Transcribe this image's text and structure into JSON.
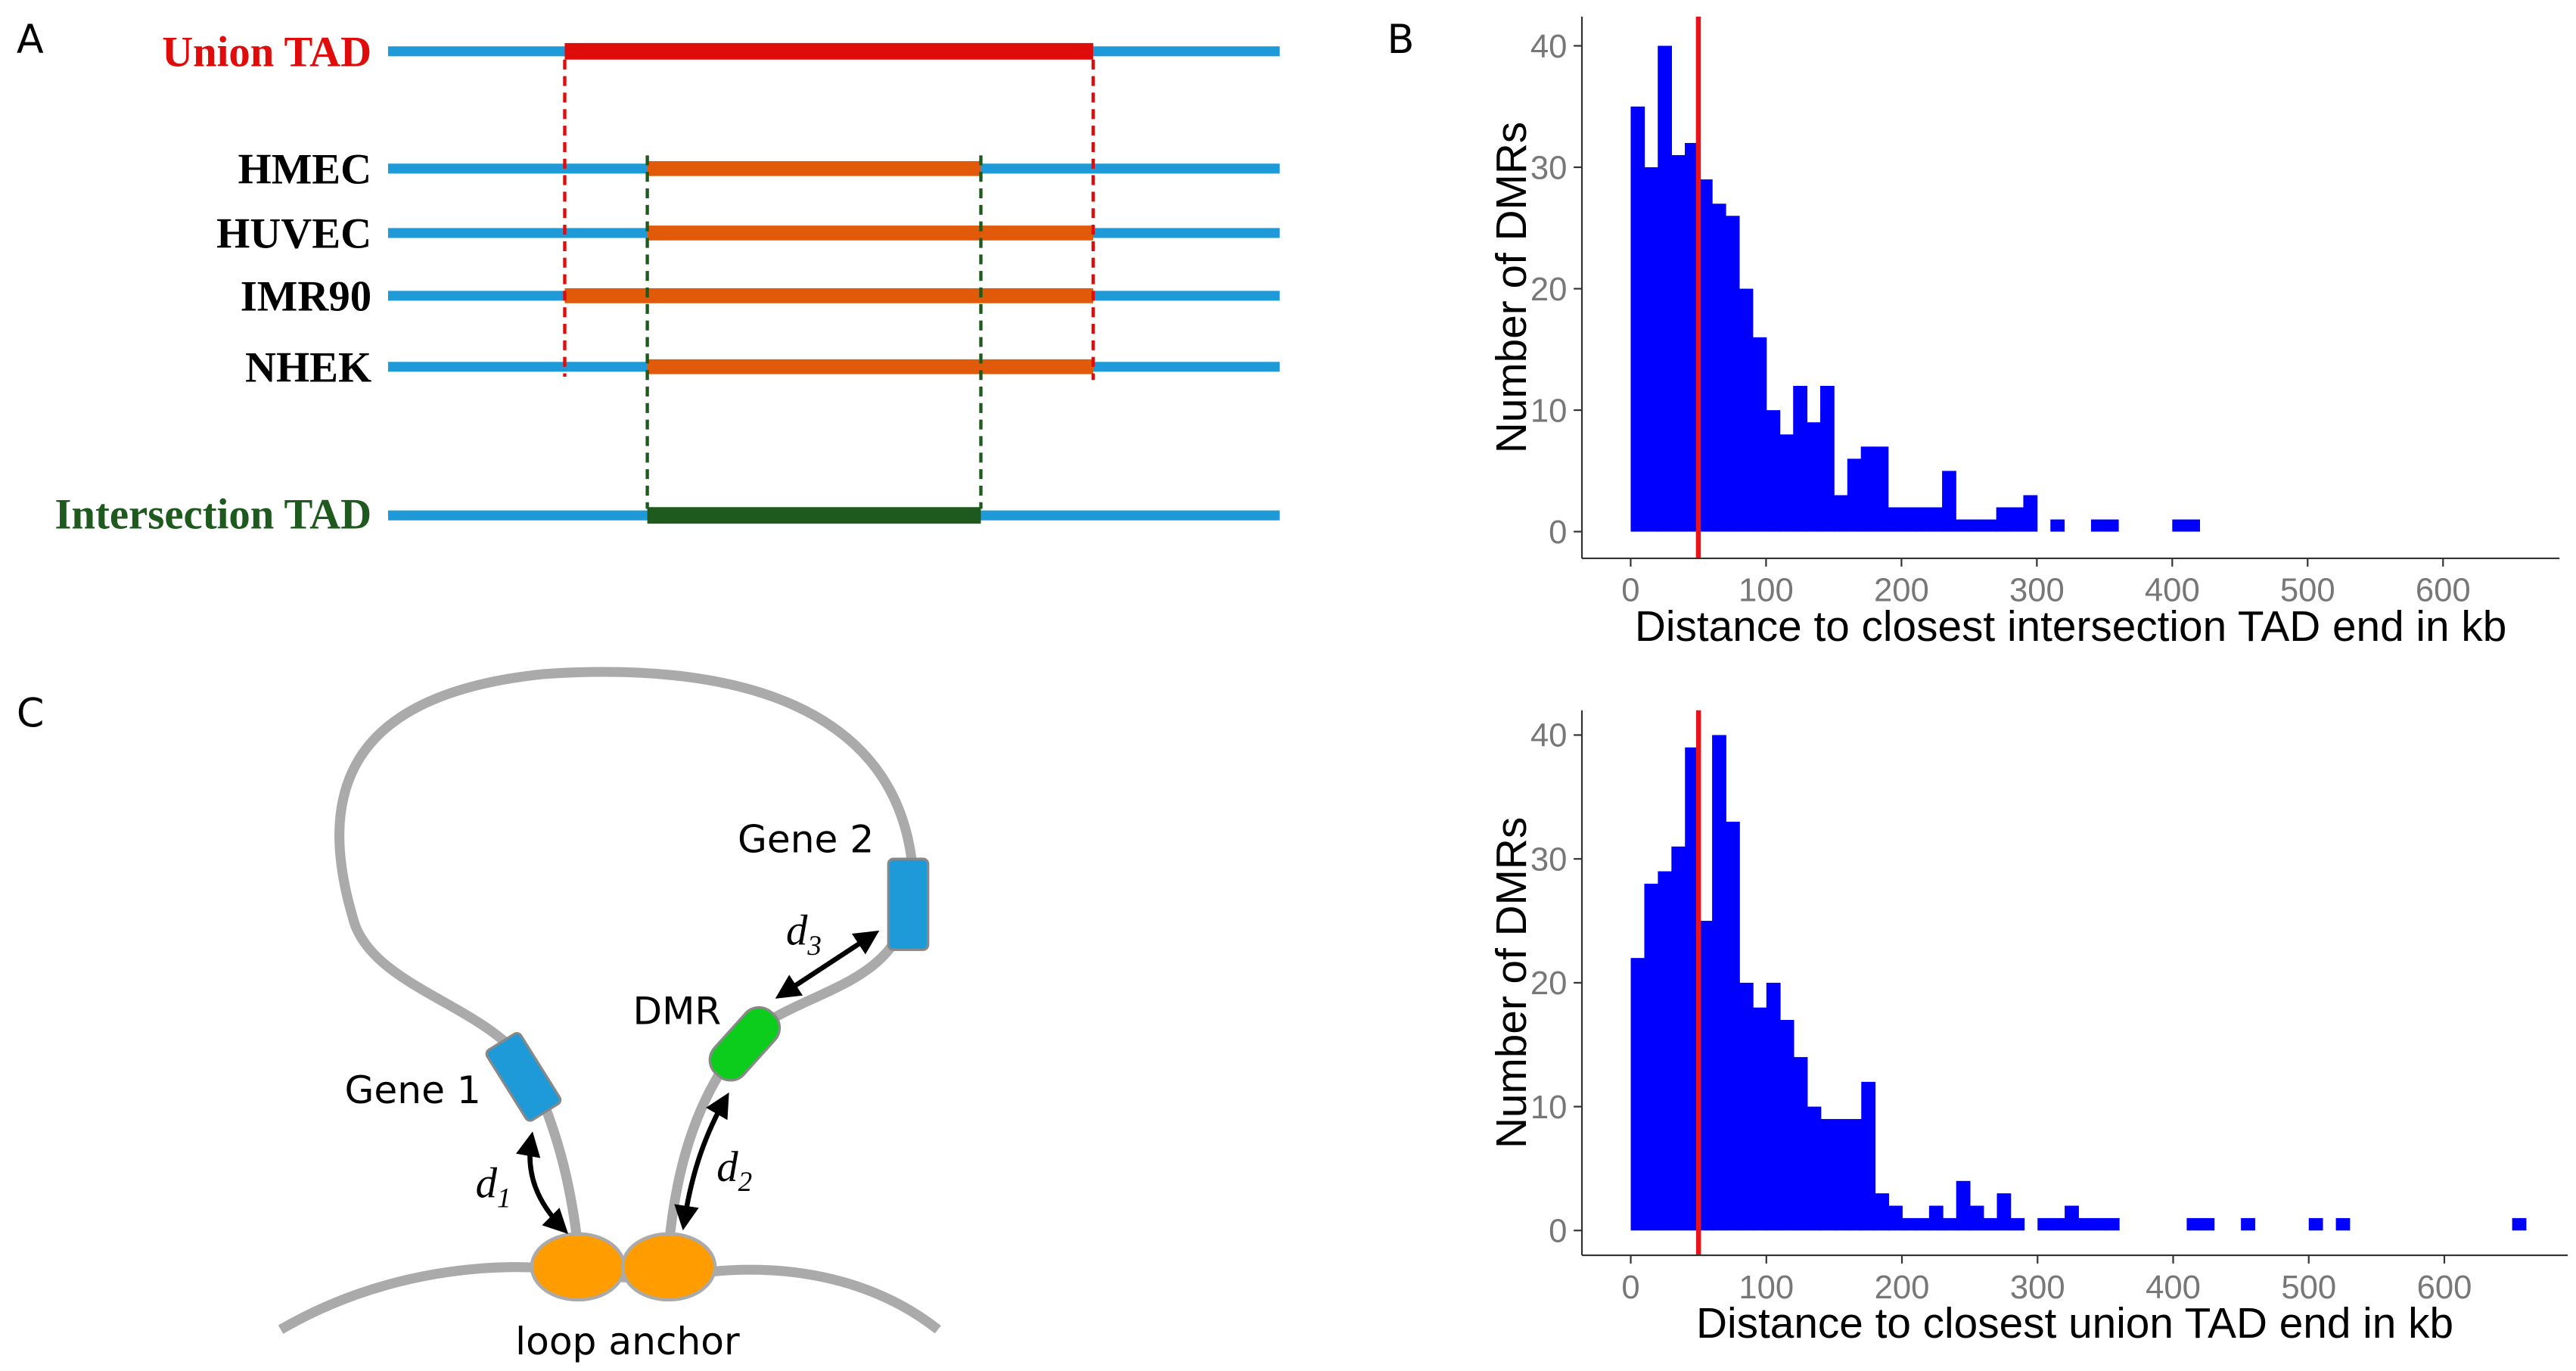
{
  "panel_labels": [
    "A",
    "B",
    "C"
  ],
  "diagram_a": {
    "union": "Union TAD",
    "cells": [
      "HMEC",
      "HUVEC",
      "IMR90",
      "NHEK"
    ],
    "intersection": "Intersection TAD"
  },
  "diagram_c": {
    "gene2": "Gene 2",
    "dmr": "DMR",
    "gene1": "Gene 1",
    "d1": {
      "var": "d",
      "sub": "1"
    },
    "d2": {
      "var": "d",
      "sub": "2"
    },
    "d3": {
      "var": "d",
      "sub": "3"
    },
    "anchor": "loop anchor"
  },
  "chart_data": [
    {
      "type": "histogram",
      "x_label": "Distance to closest intersection TAD end in kb",
      "y_label": "Number of DMRs",
      "bins": [
        0,
        10,
        20,
        30,
        40,
        50,
        60,
        70,
        80,
        90,
        100,
        110,
        120,
        130,
        140,
        150,
        160,
        170,
        180,
        190,
        200,
        210,
        220,
        230,
        240,
        250,
        260,
        270,
        280,
        290,
        300,
        310,
        320,
        330,
        340,
        350,
        360,
        370,
        380,
        390,
        400,
        410,
        420
      ],
      "values": [
        35,
        30,
        40,
        31,
        32,
        29,
        27,
        26,
        20,
        16,
        10,
        8,
        12,
        9,
        12,
        3,
        6,
        7,
        7,
        2,
        2,
        2,
        2,
        5,
        1,
        1,
        1,
        2,
        2,
        3,
        0,
        1,
        0,
        0,
        1,
        1,
        0,
        0,
        0,
        0,
        1,
        1
      ],
      "color": "#0000ff",
      "vline": 50,
      "vline_color": "#e8141b",
      "xlim": [
        -36,
        686
      ],
      "ylim": [
        -2.2,
        42.4
      ],
      "xticks": [
        0,
        100,
        200,
        300,
        400,
        500,
        600
      ],
      "yticks": [
        0,
        10,
        20,
        30,
        40
      ]
    },
    {
      "type": "histogram",
      "x_label": "Distance to closest union TAD end in kb",
      "y_label": "Number of DMRs",
      "bins": [
        0,
        10,
        20,
        30,
        40,
        50,
        60,
        70,
        80,
        90,
        100,
        110,
        120,
        130,
        140,
        150,
        160,
        170,
        180,
        190,
        200,
        210,
        220,
        230,
        240,
        250,
        260,
        270,
        280,
        290,
        300,
        310,
        320,
        330,
        340,
        350,
        360,
        370,
        380,
        390,
        400,
        410,
        420,
        430,
        440,
        450,
        460,
        470,
        480,
        490,
        500,
        510,
        520,
        530,
        540,
        550,
        560,
        570,
        580,
        590,
        600,
        610,
        620,
        630,
        640,
        650,
        660
      ],
      "values": [
        22,
        28,
        29,
        31,
        39,
        25,
        40,
        33,
        20,
        18,
        20,
        17,
        14,
        10,
        9,
        9,
        9,
        12,
        3,
        2,
        1,
        1,
        2,
        1,
        4,
        2,
        1,
        3,
        1,
        0,
        1,
        1,
        2,
        1,
        1,
        1,
        0,
        0,
        0,
        0,
        0,
        1,
        1,
        0,
        0,
        1,
        0,
        0,
        0,
        0,
        1,
        0,
        1,
        0,
        0,
        0,
        0,
        0,
        0,
        0,
        0,
        0,
        0,
        0,
        0,
        1
      ],
      "color": "#0000ff",
      "vline": 50,
      "vline_color": "#e8141b",
      "xlim": [
        -36,
        691
      ],
      "ylim": [
        -2,
        42
      ],
      "xticks": [
        0,
        100,
        200,
        300,
        400,
        500,
        600
      ],
      "yticks": [
        0,
        10,
        20,
        30,
        40
      ]
    }
  ]
}
